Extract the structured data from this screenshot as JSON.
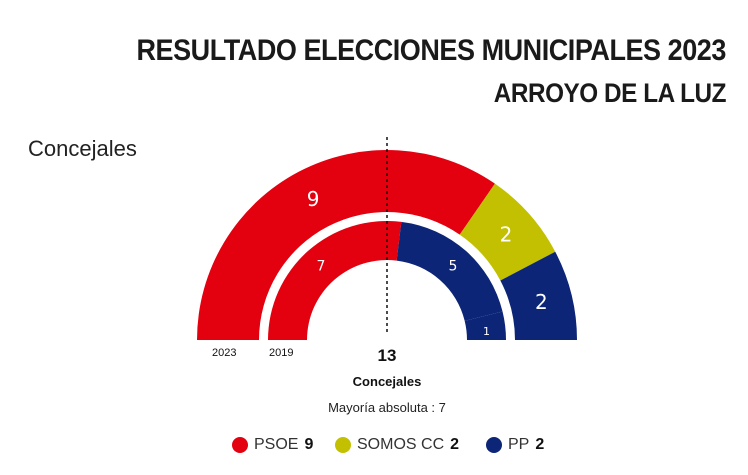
{
  "header": {
    "title": "RESULTADO ELECCIONES MUNICIPALES 2023",
    "subtitle": "ARROYO DE LA LUZ"
  },
  "section_label": "Concejales",
  "chart_data": {
    "type": "pie",
    "variant": "half-donut, two concentric rings",
    "total_label": "13",
    "total_caption": "Concejales",
    "majority_label": "Mayoría absoluta : 7",
    "majority": 7,
    "total_seats": 13,
    "rings": [
      {
        "year": "2023",
        "segments": [
          {
            "party": "PSOE",
            "seats": 9,
            "color": "#e3000f"
          },
          {
            "party": "SOMOS CC",
            "seats": 2,
            "color": "#c2c000"
          },
          {
            "party": "PP",
            "seats": 2,
            "color": "#0c2577"
          }
        ]
      },
      {
        "year": "2019",
        "segments": [
          {
            "party": "PSOE",
            "seats": 7,
            "color": "#e3000f"
          },
          {
            "party": "PP",
            "seats": 5,
            "color": "#0c2577"
          },
          {
            "party": "",
            "seats": 1,
            "color": "#0c2577"
          }
        ]
      }
    ],
    "legend": [
      {
        "party": "PSOE",
        "seats": "9",
        "color": "#e3000f"
      },
      {
        "party": "SOMOS CC",
        "seats": "2",
        "color": "#c2c000"
      },
      {
        "party": "PP",
        "seats": "2",
        "color": "#0c2577"
      }
    ],
    "legend_position": "bottom"
  }
}
